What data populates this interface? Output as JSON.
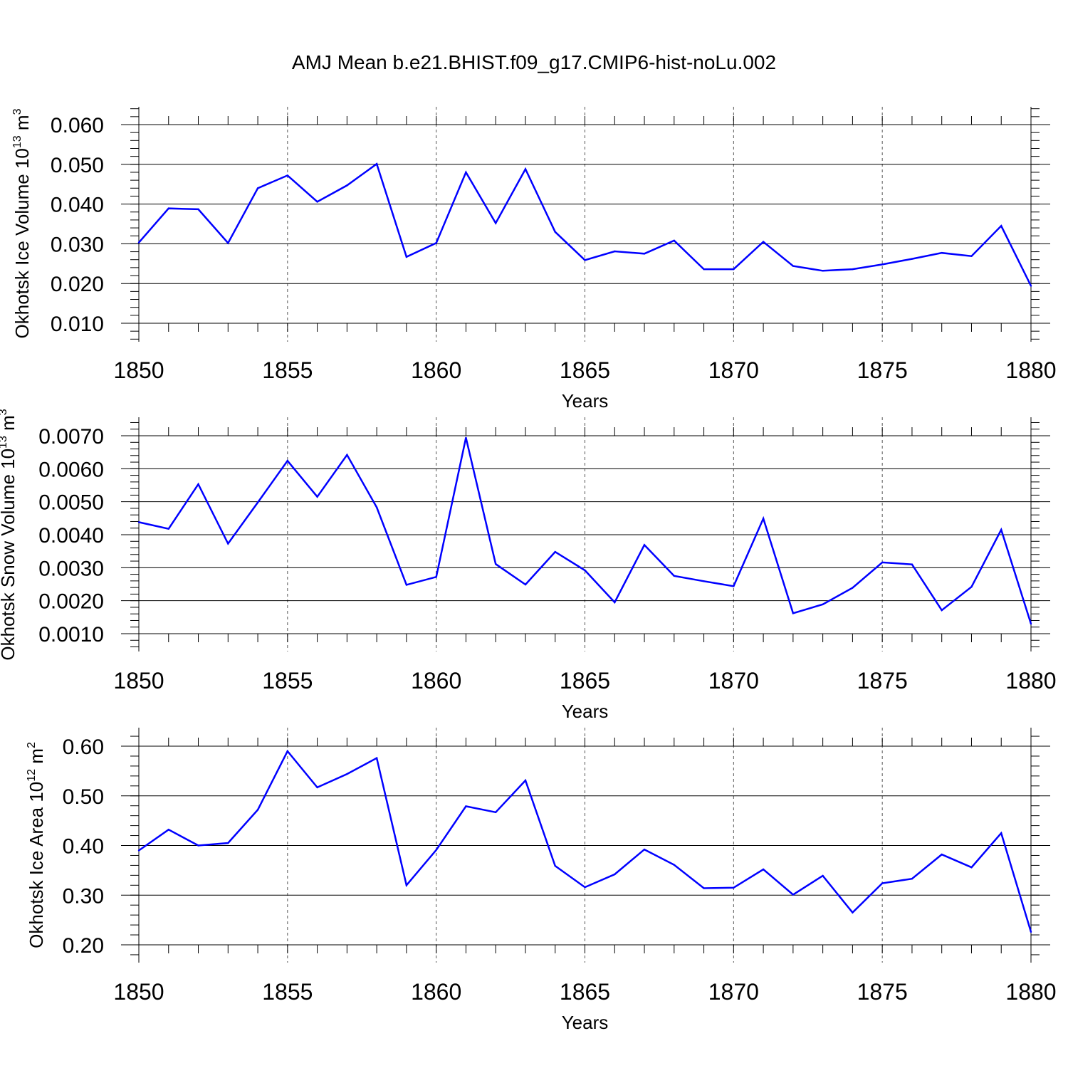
{
  "title": "AMJ Mean b.e21.BHIST.f09_g17.CMIP6-hist-noLu.002",
  "line_color": "#0000ff",
  "chart_data": [
    {
      "type": "line",
      "xlabel": "Years",
      "ylabel": {
        "text": "Okhotsk Ice Volume 10",
        "sup": "13",
        "unit": " m",
        "unit_sup": "3"
      },
      "xlim": [
        1850,
        1880
      ],
      "ylim": [
        0.01,
        0.062
      ],
      "xticks": [
        1850,
        1855,
        1860,
        1865,
        1870,
        1875,
        1880
      ],
      "xtick_labels": [
        "1850",
        "1855",
        "1860",
        "1865",
        "1870",
        "1875",
        "1880"
      ],
      "yticks": [
        0.01,
        0.02,
        0.03,
        0.04,
        0.05,
        0.06
      ],
      "ytick_labels": [
        "0.010",
        "0.020",
        "0.030",
        "0.040",
        "0.050",
        "0.060"
      ],
      "grid": "vertical dashed at major x ticks",
      "x": [
        1850,
        1851,
        1852,
        1853,
        1854,
        1855,
        1856,
        1857,
        1858,
        1859,
        1860,
        1861,
        1862,
        1863,
        1864,
        1865,
        1866,
        1867,
        1868,
        1869,
        1870,
        1871,
        1872,
        1873,
        1874,
        1875,
        1876,
        1877,
        1878,
        1879,
        1880
      ],
      "values": [
        0.0303,
        0.0389,
        0.0387,
        0.0302,
        0.044,
        0.0472,
        0.0406,
        0.0447,
        0.0501,
        0.0267,
        0.0302,
        0.048,
        0.0352,
        0.0488,
        0.033,
        0.0259,
        0.0281,
        0.0275,
        0.0308,
        0.0236,
        0.0236,
        0.0305,
        0.0244,
        0.0232,
        0.0236,
        0.0248,
        0.0262,
        0.0277,
        0.0269,
        0.0345,
        0.0194
      ]
    },
    {
      "type": "line",
      "xlabel": "Years",
      "ylabel": {
        "text": "Okhotsk Snow Volume 10",
        "sup": "13",
        "unit": " m",
        "unit_sup": "3"
      },
      "xlim": [
        1850,
        1880
      ],
      "ylim": [
        0.001,
        0.0071
      ],
      "xticks": [
        1850,
        1855,
        1860,
        1865,
        1870,
        1875,
        1880
      ],
      "xtick_labels": [
        "1850",
        "1855",
        "1860",
        "1865",
        "1870",
        "1875",
        "1880"
      ],
      "yticks": [
        0.001,
        0.002,
        0.003,
        0.004,
        0.005,
        0.006,
        0.007
      ],
      "ytick_labels": [
        "0.0010",
        "0.0020",
        "0.0030",
        "0.0040",
        "0.0050",
        "0.0060",
        "0.0070"
      ],
      "grid": "vertical dashed at major x ticks",
      "x": [
        1850,
        1851,
        1852,
        1853,
        1854,
        1855,
        1856,
        1857,
        1858,
        1859,
        1860,
        1861,
        1862,
        1863,
        1864,
        1865,
        1866,
        1867,
        1868,
        1869,
        1870,
        1871,
        1872,
        1873,
        1874,
        1875,
        1876,
        1877,
        1878,
        1879,
        1880
      ],
      "values": [
        0.00438,
        0.00418,
        0.00553,
        0.00373,
        0.00498,
        0.00624,
        0.00515,
        0.00642,
        0.00483,
        0.00248,
        0.00272,
        0.00694,
        0.00311,
        0.00249,
        0.00348,
        0.00292,
        0.00195,
        0.00369,
        0.00275,
        0.00259,
        0.00244,
        0.00449,
        0.00162,
        0.00189,
        0.00239,
        0.00316,
        0.0031,
        0.00171,
        0.00242,
        0.00415,
        0.0013
      ]
    },
    {
      "type": "line",
      "xlabel": "Years",
      "ylabel": {
        "text": "Okhotsk Ice Area 10",
        "sup": "12",
        "unit": " m",
        "unit_sup": "2"
      },
      "xlim": [
        1850,
        1880
      ],
      "ylim": [
        0.2,
        0.64
      ],
      "xticks": [
        1850,
        1855,
        1860,
        1865,
        1870,
        1875,
        1880
      ],
      "xtick_labels": [
        "1850",
        "1855",
        "1860",
        "1865",
        "1870",
        "1875",
        "1880"
      ],
      "yticks": [
        0.2,
        0.3,
        0.4,
        0.5,
        0.6
      ],
      "ytick_labels": [
        "0.20",
        "0.30",
        "0.40",
        "0.50",
        "0.60"
      ],
      "grid": "vertical dashed at major x ticks",
      "x": [
        1850,
        1851,
        1852,
        1853,
        1854,
        1855,
        1856,
        1857,
        1858,
        1859,
        1860,
        1861,
        1862,
        1863,
        1864,
        1865,
        1866,
        1867,
        1868,
        1869,
        1870,
        1871,
        1872,
        1873,
        1874,
        1875,
        1876,
        1877,
        1878,
        1879,
        1880
      ],
      "values": [
        0.39,
        0.432,
        0.4,
        0.405,
        0.472,
        0.59,
        0.517,
        0.544,
        0.576,
        0.32,
        0.391,
        0.479,
        0.467,
        0.531,
        0.359,
        0.316,
        0.342,
        0.392,
        0.361,
        0.314,
        0.315,
        0.352,
        0.301,
        0.339,
        0.265,
        0.324,
        0.333,
        0.382,
        0.356,
        0.425,
        0.226
      ]
    }
  ]
}
